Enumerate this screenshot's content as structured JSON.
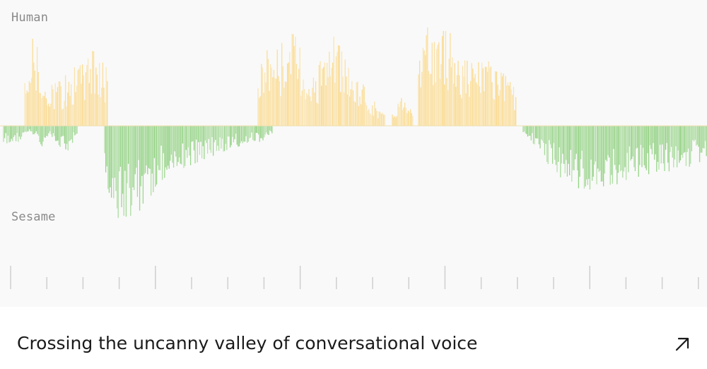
{
  "card": {
    "title": "Crossing the uncanny valley of conversational voice",
    "link_icon": "arrow-up-right-icon"
  },
  "waveform": {
    "top_speaker_label": "Human",
    "bottom_speaker_label": "Sesame",
    "colors": {
      "human": "#fbd98a",
      "sesame": "#8ed07e",
      "background": "#f9f9f9",
      "ticks": "#cfcfcf"
    },
    "human_segments": [
      {
        "start": 0.035,
        "end": 0.152,
        "amplitude": [
          0.45,
          1.0,
          0.35,
          0.4,
          0.45,
          0.55,
          0.62,
          0.75,
          0.7,
          0.55
        ]
      },
      {
        "start": 0.365,
        "end": 0.545,
        "amplitude": [
          0.55,
          0.85,
          0.8,
          1.0,
          0.75,
          0.5,
          0.65,
          0.95,
          0.7,
          0.45,
          0.4,
          0.25,
          0.1
        ]
      },
      {
        "start": 0.555,
        "end": 0.585,
        "amplitude": [
          0.15,
          0.35,
          0.25
        ]
      },
      {
        "start": 0.592,
        "end": 0.73,
        "amplitude": [
          0.85,
          1.0,
          0.95,
          0.9,
          0.75,
          0.65,
          0.7,
          0.55,
          0.5,
          0.4
        ]
      }
    ],
    "sesame_segments": [
      {
        "start": 0.005,
        "end": 0.11,
        "amplitude": [
          0.15,
          0.25,
          0.1,
          0.05,
          0.22,
          0.1,
          0.2,
          0.25,
          0.08
        ]
      },
      {
        "start": 0.148,
        "end": 0.385,
        "amplitude": [
          0.5,
          0.85,
          1.0,
          0.85,
          0.55,
          0.45,
          0.4,
          0.35,
          0.3,
          0.25,
          0.2,
          0.18,
          0.15,
          0.1
        ]
      },
      {
        "start": 0.74,
        "end": 1.0,
        "amplitude": [
          0.1,
          0.2,
          0.45,
          0.55,
          0.6,
          0.58,
          0.55,
          0.5,
          0.45,
          0.45,
          0.4,
          0.38,
          0.3
        ]
      }
    ],
    "timeline_ticks": 20,
    "major_tick_every": 4
  }
}
